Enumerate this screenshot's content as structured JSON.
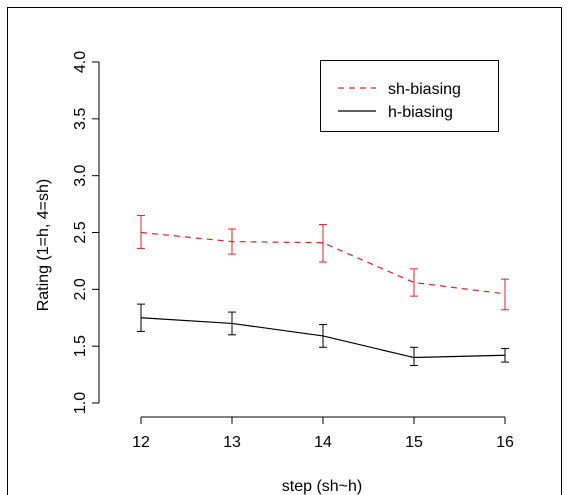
{
  "chart_data": {
    "type": "line",
    "title": "",
    "xlabel": "step (sh~h)",
    "ylabel": "Rating (1=h, 4=sh)",
    "x": [
      12,
      13,
      14,
      15,
      16
    ],
    "xticks": [
      "12",
      "13",
      "14",
      "15",
      "16"
    ],
    "xlim": [
      12,
      16
    ],
    "ylim": [
      1.0,
      4.0
    ],
    "yticks": [
      "1.0",
      "1.5",
      "2.0",
      "2.5",
      "3.0",
      "3.5",
      "4.0"
    ],
    "grid": false,
    "legend_position": "top-right",
    "series": [
      {
        "name": "sh-biasing",
        "color": "#d62728",
        "line_style": "dashed",
        "values": [
          2.5,
          2.42,
          2.41,
          2.06,
          1.96
        ],
        "error_low": [
          2.36,
          2.31,
          2.24,
          1.94,
          1.82
        ],
        "error_high": [
          2.65,
          2.53,
          2.57,
          2.18,
          2.09
        ]
      },
      {
        "name": "h-biasing",
        "color": "#000000",
        "line_style": "solid",
        "values": [
          1.75,
          1.7,
          1.59,
          1.4,
          1.42
        ],
        "error_low": [
          1.63,
          1.6,
          1.49,
          1.33,
          1.36
        ],
        "error_high": [
          1.87,
          1.8,
          1.69,
          1.49,
          1.48
        ]
      }
    ]
  }
}
